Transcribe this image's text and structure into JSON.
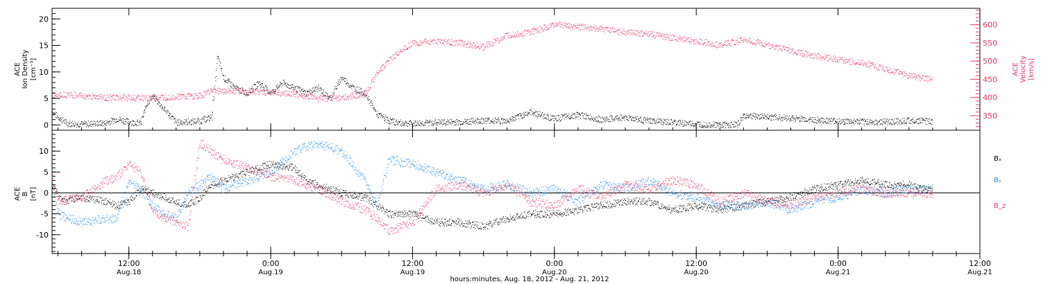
{
  "colors": {
    "black": "#000000",
    "magenta": "#e8375f",
    "blue": "#1e8ae6"
  },
  "x_axis": {
    "title": "hours:minutes, Aug. 18, 2012 - Aug. 21, 2012",
    "range_hours": [
      5.5,
      84
    ],
    "ticks": [
      {
        "hour": 12,
        "time": "12:00",
        "date": "Aug.18"
      },
      {
        "hour": 24,
        "time": "0:00",
        "date": "Aug.19"
      },
      {
        "hour": 36,
        "time": "12:00",
        "date": "Aug.19"
      },
      {
        "hour": 48,
        "time": "0:00",
        "date": "Aug.20"
      },
      {
        "hour": 60,
        "time": "12:00",
        "date": "Aug.20"
      },
      {
        "hour": 72,
        "time": "0:00",
        "date": "Aug.21"
      },
      {
        "hour": 84,
        "time": "12:00",
        "date": "Aug.21"
      }
    ]
  },
  "chart_data": [
    {
      "type": "scatter",
      "panel": "plasma",
      "left_axis": {
        "label_lines": [
          "ACE",
          "Ion Density",
          "[cm⁻³]"
        ],
        "range": [
          -1,
          22
        ],
        "ticks": [
          0,
          5,
          10,
          15,
          20
        ]
      },
      "right_axis": {
        "label_lines": [
          "ACE",
          "Velocity",
          "[km/s]"
        ],
        "range": [
          310,
          645
        ],
        "ticks": [
          350,
          400,
          450,
          500,
          550,
          600
        ],
        "color": "#e8375f"
      },
      "series": [
        {
          "color": "#000000",
          "axis": "left",
          "x": [
            5.5,
            6.0,
            6.8,
            8,
            10,
            11,
            12,
            13,
            13.5,
            14,
            15,
            16,
            17,
            18,
            19,
            19.5,
            20,
            21,
            22,
            23,
            24,
            25,
            26,
            27,
            28,
            29,
            30,
            31,
            32,
            33,
            33.5,
            34,
            35,
            36,
            37,
            38,
            40,
            42,
            44,
            46,
            48,
            50,
            52,
            54,
            56,
            58,
            60,
            62,
            63.5,
            64,
            66,
            68,
            70,
            72,
            74,
            76,
            78,
            80
          ],
          "y": [
            2.5,
            1.5,
            0.3,
            0.2,
            0.4,
            1.2,
            0.6,
            0.4,
            4.0,
            5.5,
            3.0,
            0.5,
            0.6,
            0.8,
            1.5,
            13,
            9,
            7,
            6,
            8,
            6,
            8,
            7,
            6,
            7,
            5,
            9,
            7,
            6,
            2,
            1.5,
            0.8,
            0.4,
            0.3,
            0.4,
            0.5,
            0.6,
            0.9,
            0.8,
            2.5,
            1.2,
            2.0,
            1.0,
            1.5,
            0.8,
            0.5,
            0.2,
            0.1,
            0.1,
            1.8,
            1.6,
            1.3,
            1.0,
            0.7,
            0.6,
            0.6,
            0.9,
            0.7
          ]
        },
        {
          "color": "#e8375f",
          "axis": "right",
          "x": [
            5.5,
            6,
            8,
            10,
            12,
            14,
            16,
            18,
            19,
            20,
            22,
            24,
            26,
            28,
            30,
            32,
            33,
            34,
            35,
            36,
            38,
            40,
            42,
            44,
            46,
            48,
            50,
            52,
            54,
            56,
            58,
            60,
            62,
            64,
            66,
            68,
            70,
            72,
            74,
            76,
            78,
            80
          ],
          "y": [
            405,
            410,
            405,
            400,
            400,
            398,
            402,
            405,
            420,
            418,
            418,
            415,
            410,
            398,
            400,
            410,
            470,
            500,
            530,
            550,
            555,
            550,
            540,
            570,
            580,
            600,
            595,
            590,
            580,
            575,
            565,
            555,
            545,
            560,
            545,
            530,
            515,
            505,
            495,
            480,
            460,
            450
          ]
        }
      ]
    },
    {
      "type": "scatter",
      "panel": "magnetic_field",
      "left_axis": {
        "label_lines": [
          "ACE",
          "B",
          "[nT]"
        ],
        "range": [
          -14.5,
          15
        ],
        "ticks": [
          -10,
          -5,
          0,
          5,
          10
        ],
        "zero_line": true
      },
      "series": [
        {
          "name": "Bₓ",
          "color": "#000000",
          "x": [
            5.5,
            6.5,
            8,
            10,
            11,
            12,
            13,
            14,
            16,
            17,
            18,
            19,
            20,
            22,
            24,
            26,
            27,
            28,
            30,
            32,
            33,
            34,
            36,
            38,
            40,
            42,
            44,
            46,
            48,
            50,
            52,
            54,
            56,
            58,
            60,
            62,
            64,
            66,
            68,
            70,
            72,
            74,
            76,
            78,
            80
          ],
          "y": [
            2,
            -2,
            -1,
            -2,
            -3,
            -2,
            1,
            0,
            -2,
            -3,
            -1,
            2,
            3,
            5,
            7,
            6,
            3,
            2,
            0,
            -1,
            -3,
            -5,
            -5,
            -7,
            -7,
            -8,
            -6,
            -5,
            -5,
            -4,
            -3,
            -2,
            -2,
            -4,
            -3,
            -4,
            -3,
            -2,
            -1,
            1,
            2,
            3,
            2,
            2,
            0.5
          ]
        },
        {
          "name": "Bᵧ",
          "color": "#1e8ae6",
          "x": [
            5.5,
            6,
            8,
            10,
            11,
            12,
            13,
            14,
            15,
            16,
            17,
            18,
            19,
            20,
            21,
            22,
            24,
            26,
            27,
            28,
            30,
            32,
            33,
            34,
            36,
            38,
            40,
            42,
            44,
            46,
            48,
            50,
            52,
            54,
            56,
            58,
            60,
            62,
            64,
            66,
            68,
            70,
            72,
            74,
            76,
            78,
            80
          ],
          "y": [
            3,
            -5,
            -7,
            -6,
            -6,
            3,
            1,
            -3,
            -5,
            -6,
            0,
            2,
            4,
            1,
            2,
            3,
            5,
            10,
            11,
            12,
            10,
            3,
            -3,
            8,
            7,
            5,
            3,
            1,
            2,
            0,
            1,
            -2,
            2,
            1,
            3,
            0,
            -1,
            -3,
            -3,
            -2,
            -4,
            -2,
            -1,
            1,
            0,
            1,
            1
          ]
        },
        {
          "name": "B_z",
          "color": "#e8375f",
          "x": [
            5.5,
            6,
            8,
            10,
            11,
            12,
            13,
            14,
            15,
            16,
            17,
            18,
            19,
            20,
            22,
            24,
            26,
            28,
            30,
            32,
            33,
            34,
            36,
            38,
            40,
            42,
            44,
            46,
            48,
            50,
            52,
            54,
            56,
            58,
            60,
            62,
            64,
            66,
            68,
            70,
            72,
            74,
            76,
            78,
            80
          ],
          "y": [
            4,
            -2,
            -1,
            3,
            4,
            7,
            5,
            -4,
            -6,
            -7,
            -8,
            12,
            10,
            8,
            6,
            4,
            3,
            1,
            -2,
            -4,
            -6,
            -9,
            -7,
            1,
            2,
            0,
            2,
            -2,
            -3,
            1,
            -1,
            2,
            1,
            3,
            2,
            -2,
            0,
            -2,
            -3,
            -1,
            0,
            1,
            0,
            0,
            0
          ]
        }
      ]
    }
  ]
}
